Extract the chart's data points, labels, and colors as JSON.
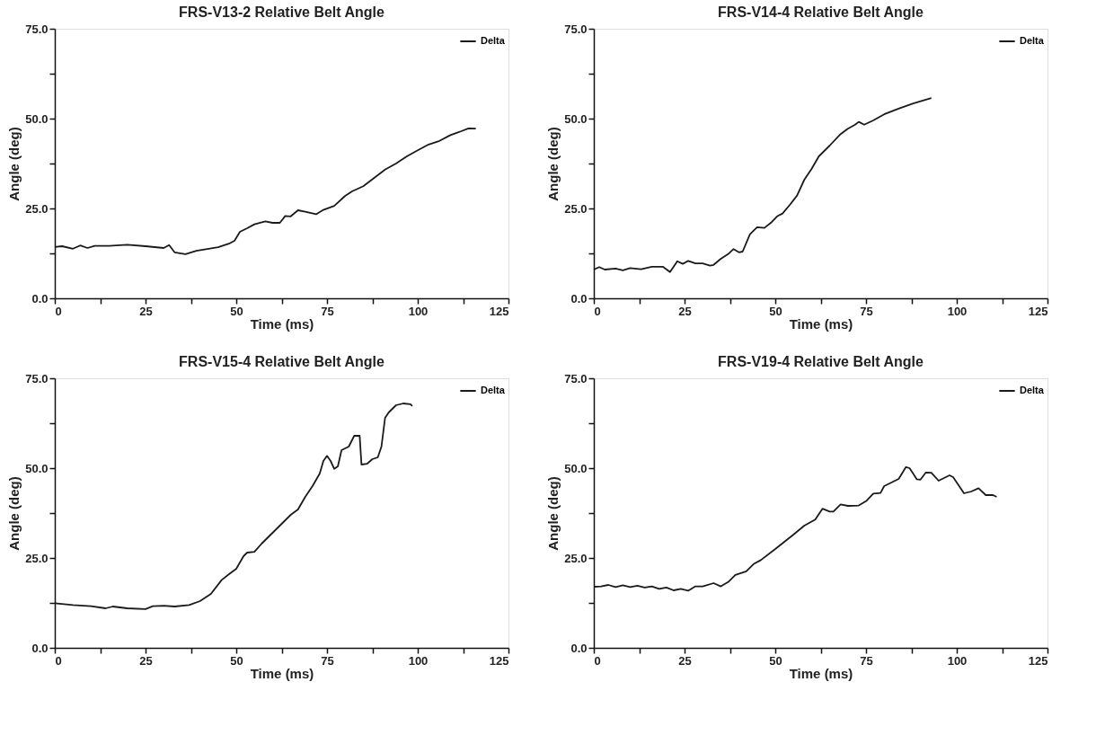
{
  "chart_data": [
    {
      "type": "line",
      "title": "FRS-V13-2 Relative Belt Angle",
      "xlabel": "Time (ms)",
      "ylabel": "Angle (deg)",
      "legend": "top right",
      "grid": false,
      "marker": "none",
      "line_style": "solid",
      "xlim": [
        0,
        125
      ],
      "ylim": [
        0,
        75
      ],
      "xticks": [
        0,
        {
          "value": 12.5,
          "label": null
        },
        25,
        {
          "value": 37.5,
          "label": null
        },
        50,
        {
          "value": 62.5,
          "label": null
        },
        75,
        {
          "value": 87.5,
          "label": null
        },
        100,
        {
          "value": 112.5,
          "label": null
        },
        125
      ],
      "yticks": [
        {
          "value": 0,
          "label": "0.0"
        },
        {
          "value": 12.5,
          "label": null
        },
        {
          "value": 25,
          "label": "25.0"
        },
        {
          "value": 37.5,
          "label": null
        },
        {
          "value": 50,
          "label": "50.0"
        },
        {
          "value": 62.5,
          "label": null
        },
        {
          "value": 75,
          "label": "75.0"
        }
      ],
      "series": [
        {
          "name": "Delta",
          "color": "#1a1a1a",
          "x": [
            0,
            2,
            5,
            7,
            9,
            11,
            15,
            20,
            25,
            30,
            31.5,
            33,
            36,
            39,
            45,
            48,
            49.5,
            51,
            53,
            55,
            58,
            60,
            62,
            63.5,
            65,
            67,
            69,
            72,
            74,
            77,
            80,
            82,
            85,
            88,
            91,
            94,
            97,
            100,
            103,
            106,
            109,
            112,
            114,
            116
          ],
          "values": [
            14.3,
            14.5,
            13.8,
            14.7,
            14.0,
            14.6,
            14.6,
            14.9,
            14.5,
            14.0,
            14.8,
            12.8,
            12.3,
            13.2,
            14.2,
            15.2,
            16.0,
            18.5,
            19.5,
            20.6,
            21.4,
            21.0,
            21.0,
            22.9,
            22.8,
            24.5,
            24.1,
            23.4,
            24.6,
            25.7,
            28.5,
            29.8,
            31.2,
            33.5,
            35.8,
            37.5,
            39.5,
            41.2,
            42.8,
            43.8,
            45.4,
            46.5,
            47.3,
            47.2
          ]
        }
      ]
    },
    {
      "type": "line",
      "title": "FRS-V14-4 Relative Belt Angle",
      "xlabel": "Time (ms)",
      "ylabel": "Angle (deg)",
      "legend": "top right",
      "grid": false,
      "marker": "none",
      "line_style": "solid",
      "xlim": [
        0,
        125
      ],
      "ylim": [
        0,
        75
      ],
      "xticks": [
        0,
        {
          "value": 12.5,
          "label": null
        },
        25,
        {
          "value": 37.5,
          "label": null
        },
        50,
        {
          "value": 62.5,
          "label": null
        },
        75,
        {
          "value": 87.5,
          "label": null
        },
        100,
        {
          "value": 112.5,
          "label": null
        },
        125
      ],
      "yticks": [
        {
          "value": 0,
          "label": "0.0"
        },
        {
          "value": 12.5,
          "label": null
        },
        {
          "value": 25,
          "label": "25.0"
        },
        {
          "value": 37.5,
          "label": null
        },
        {
          "value": 50,
          "label": "50.0"
        },
        {
          "value": 62.5,
          "label": null
        },
        {
          "value": 75,
          "label": "75.0"
        }
      ],
      "series": [
        {
          "name": "Delta",
          "color": "#1a1a1a",
          "x": [
            0,
            1.5,
            3,
            6,
            8,
            10,
            13,
            16,
            19,
            21,
            23,
            24.5,
            26,
            28,
            30,
            32,
            33,
            35,
            37,
            38.5,
            40,
            41,
            43,
            45,
            47,
            49,
            50.5,
            52,
            54,
            56,
            58,
            60,
            62,
            65,
            68,
            70,
            72,
            73,
            74.5,
            77,
            80,
            84,
            88,
            93
          ],
          "values": [
            8.0,
            8.7,
            8.0,
            8.3,
            7.8,
            8.4,
            8.1,
            8.8,
            8.8,
            7.3,
            10.3,
            9.6,
            10.4,
            9.7,
            9.7,
            9.1,
            9.3,
            11.0,
            12.3,
            13.7,
            12.8,
            13.0,
            17.8,
            19.8,
            19.6,
            21.2,
            22.8,
            23.6,
            26.0,
            28.6,
            33.0,
            36.0,
            39.5,
            42.5,
            45.7,
            47.2,
            48.3,
            49.1,
            48.3,
            49.5,
            51.2,
            52.8,
            54.2,
            55.7
          ]
        }
      ]
    },
    {
      "type": "line",
      "title": "FRS-V15-4 Relative Belt Angle",
      "xlabel": "Time (ms)",
      "ylabel": "Angle (deg)",
      "legend": "top right",
      "grid": false,
      "marker": "none",
      "line_style": "solid",
      "xlim": [
        0,
        125
      ],
      "ylim": [
        0,
        75
      ],
      "xticks": [
        0,
        {
          "value": 12.5,
          "label": null
        },
        25,
        {
          "value": 37.5,
          "label": null
        },
        50,
        {
          "value": 62.5,
          "label": null
        },
        75,
        {
          "value": 87.5,
          "label": null
        },
        100,
        {
          "value": 112.5,
          "label": null
        },
        125
      ],
      "yticks": [
        {
          "value": 0,
          "label": "0.0"
        },
        {
          "value": 12.5,
          "label": null
        },
        {
          "value": 25,
          "label": "25.0"
        },
        {
          "value": 37.5,
          "label": null
        },
        {
          "value": 50,
          "label": "50.0"
        },
        {
          "value": 62.5,
          "label": null
        },
        {
          "value": 75,
          "label": "75.0"
        }
      ],
      "series": [
        {
          "name": "Delta",
          "color": "#1a1a1a",
          "x": [
            0,
            5,
            10,
            14,
            16,
            20,
            25,
            27,
            30,
            33,
            37,
            40,
            43,
            46,
            48,
            50,
            52,
            53,
            55,
            57,
            60,
            63,
            65,
            67,
            69,
            71,
            73,
            74,
            75,
            76,
            77,
            78,
            79,
            81,
            82.5,
            84,
            84.5,
            86,
            87.5,
            89,
            90,
            91,
            92,
            94,
            96,
            98,
            98.5
          ],
          "values": [
            12.4,
            11.9,
            11.6,
            11.0,
            11.5,
            11.0,
            10.8,
            11.6,
            11.7,
            11.5,
            11.9,
            13.0,
            15.0,
            18.9,
            20.5,
            22.0,
            25.5,
            26.5,
            26.7,
            29.0,
            32.0,
            35.0,
            37.0,
            38.5,
            42.0,
            45.0,
            48.5,
            52.0,
            53.4,
            52.0,
            49.8,
            50.5,
            55.0,
            56.0,
            59.0,
            59.0,
            51.0,
            51.2,
            52.5,
            53.0,
            56.0,
            64.0,
            65.5,
            67.5,
            68.0,
            67.8,
            67.3
          ]
        }
      ]
    },
    {
      "type": "line",
      "title": "FRS-V19-4 Relative Belt Angle",
      "xlabel": "Time (ms)",
      "ylabel": "Angle (deg)",
      "legend": "top right",
      "grid": false,
      "marker": "none",
      "line_style": "solid",
      "xlim": [
        0,
        125
      ],
      "ylim": [
        0,
        75
      ],
      "xticks": [
        0,
        {
          "value": 12.5,
          "label": null
        },
        25,
        {
          "value": 37.5,
          "label": null
        },
        50,
        {
          "value": 62.5,
          "label": null
        },
        75,
        {
          "value": 87.5,
          "label": null
        },
        100,
        {
          "value": 112.5,
          "label": null
        },
        125
      ],
      "yticks": [
        {
          "value": 0,
          "label": "0.0"
        },
        {
          "value": 12.5,
          "label": null
        },
        {
          "value": 25,
          "label": "25.0"
        },
        {
          "value": 37.5,
          "label": null
        },
        {
          "value": 50,
          "label": "50.0"
        },
        {
          "value": 62.5,
          "label": null
        },
        {
          "value": 75,
          "label": "75.0"
        }
      ],
      "series": [
        {
          "name": "Delta",
          "color": "#1a1a1a",
          "x": [
            0,
            2,
            4,
            6,
            8,
            10,
            12,
            14,
            16,
            18,
            20,
            22,
            24,
            26,
            28,
            30,
            33,
            35,
            37,
            39,
            42,
            44,
            46,
            50,
            55,
            58,
            61,
            63,
            65,
            66,
            68,
            70,
            73,
            75,
            77,
            79,
            80,
            84,
            86,
            87,
            89,
            90,
            91.5,
            93,
            95,
            98,
            99,
            102,
            104,
            106,
            108,
            110,
            111
          ],
          "values": [
            17.0,
            17.1,
            17.5,
            16.9,
            17.4,
            16.9,
            17.3,
            16.8,
            17.1,
            16.4,
            16.8,
            16.0,
            16.4,
            15.9,
            17.1,
            17.1,
            18.0,
            17.1,
            18.3,
            20.3,
            21.3,
            23.3,
            24.4,
            27.5,
            31.5,
            34.0,
            35.7,
            38.7,
            37.9,
            37.9,
            39.9,
            39.5,
            39.6,
            40.8,
            42.9,
            43.1,
            45.0,
            47.0,
            50.3,
            50.0,
            46.9,
            46.8,
            48.8,
            48.7,
            46.5,
            48.0,
            47.5,
            43.0,
            43.5,
            44.4,
            42.5,
            42.5,
            42.0
          ]
        }
      ]
    }
  ]
}
